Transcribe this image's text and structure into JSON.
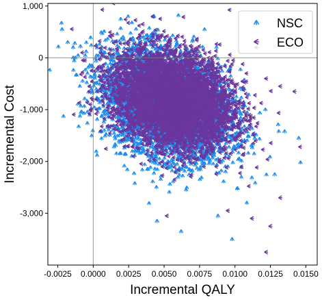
{
  "chart_data": {
    "type": "scatter",
    "xlabel": "Incremental QALY",
    "ylabel": "Incremental Cost",
    "xlim": [
      -0.0032,
      0.0158
    ],
    "ylim": [
      -4000,
      1050
    ],
    "x_ticks": [
      -0.0025,
      0.0,
      0.0025,
      0.005,
      0.0075,
      0.01,
      0.0125,
      0.015
    ],
    "x_tick_labels": [
      "-0.0025",
      "0.0000",
      "0.0025",
      "0.0050",
      "0.0075",
      "0.0100",
      "0.0125",
      "0.0150"
    ],
    "y_ticks": [
      1000,
      0,
      -1000,
      -2000,
      -3000
    ],
    "y_tick_labels": [
      "1,000",
      "0",
      "-1,000",
      "-2,000",
      "-3,000"
    ],
    "reference_lines": {
      "x": 0,
      "y": 0
    },
    "grid": false,
    "legend_position": "top-right",
    "series": [
      {
        "name": "NSC",
        "color": "#1f8ef1",
        "marker": "tri_up",
        "center": [
          0.0052,
          -900
        ],
        "spread": [
          0.0022,
          520
        ],
        "correlation": -0.3,
        "outliers": [
          [
            -0.0022,
            550
          ],
          [
            -0.0018,
            300
          ],
          [
            -0.0013,
            280
          ],
          [
            -0.0009,
            220
          ],
          [
            -0.0005,
            120
          ],
          [
            0.0002,
            -60
          ],
          [
            0.0145,
            -1550
          ],
          [
            0.0135,
            -1420
          ],
          [
            0.0098,
            -3500
          ],
          [
            0.0062,
            -3350
          ],
          [
            0.0088,
            -3050
          ],
          [
            0.0045,
            -3150
          ],
          [
            0.0128,
            -2250
          ]
        ]
      },
      {
        "name": "ECO",
        "color": "#6a359c",
        "marker": "tri_left",
        "center": [
          0.0056,
          -800
        ],
        "spread": [
          0.0021,
          470
        ],
        "correlation": -0.25,
        "outliers": [
          [
            0.0042,
            800
          ],
          [
            0.0035,
            650
          ],
          [
            0.0115,
            200
          ],
          [
            0.0122,
            -400
          ],
          [
            0.0142,
            -650
          ],
          [
            0.0132,
            -550
          ],
          [
            0.0122,
            -3750
          ],
          [
            0.0125,
            -3250
          ],
          [
            0.0052,
            -3050
          ],
          [
            0.0112,
            -3100
          ],
          [
            0.0095,
            -2950
          ],
          [
            0.0132,
            -2700
          ]
        ]
      }
    ],
    "approx_points_per_series": 5000
  }
}
